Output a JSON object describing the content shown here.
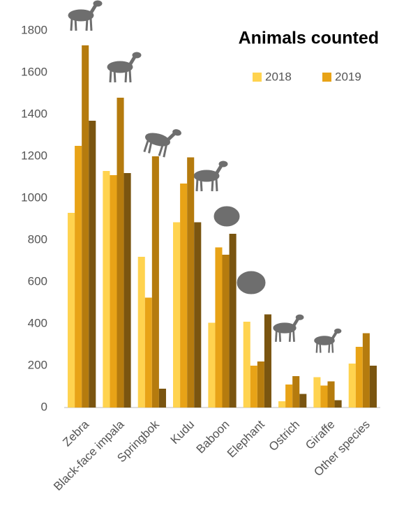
{
  "chart_data": {
    "type": "bar",
    "title": "Animals counted",
    "categories": [
      "Zebra",
      "Black-face impala",
      "Springbok",
      "Kudu",
      "Baboon",
      "Elephant",
      "Ostrich",
      "Giraffe",
      "Other species"
    ],
    "series": [
      {
        "name": "2018",
        "color": "#ffd34f",
        "values": [
          930,
          1130,
          720,
          885,
          405,
          410,
          30,
          145,
          210
        ]
      },
      {
        "name": "2019",
        "color": "#e8a317",
        "values": [
          1250,
          1110,
          525,
          1070,
          765,
          200,
          110,
          105,
          290
        ]
      },
      {
        "color": "#b57b0e",
        "values": [
          1730,
          1480,
          1200,
          1195,
          730,
          220,
          150,
          125,
          355
        ]
      },
      {
        "color": "#7a5510",
        "values": [
          1370,
          1120,
          90,
          885,
          830,
          445,
          65,
          35,
          200
        ]
      }
    ],
    "ylim": [
      0,
      1800
    ],
    "yticks": [
      0,
      200,
      400,
      600,
      800,
      1000,
      1200,
      1400,
      1600,
      1800
    ],
    "grid": false
  }
}
